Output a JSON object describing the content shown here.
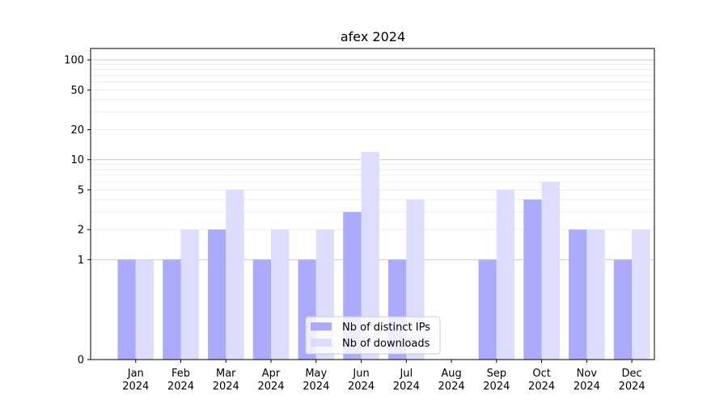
{
  "chart_data": {
    "type": "bar",
    "title": "afex 2024",
    "xlabel": "",
    "ylabel": "",
    "scale": "symlog",
    "ylim": [
      0,
      130
    ],
    "yticks": [
      0,
      1,
      2,
      5,
      10,
      20,
      50,
      100
    ],
    "categories": [
      [
        "Jan",
        "2024"
      ],
      [
        "Feb",
        "2024"
      ],
      [
        "Mar",
        "2024"
      ],
      [
        "Apr",
        "2024"
      ],
      [
        "May",
        "2024"
      ],
      [
        "Jun",
        "2024"
      ],
      [
        "Jul",
        "2024"
      ],
      [
        "Aug",
        "2024"
      ],
      [
        "Sep",
        "2024"
      ],
      [
        "Oct",
        "2024"
      ],
      [
        "Nov",
        "2024"
      ],
      [
        "Dec",
        "2024"
      ]
    ],
    "series": [
      {
        "name": "Nb of distinct IPs",
        "color": "#aaaaff",
        "values": [
          1,
          1,
          2,
          1,
          1,
          3,
          1,
          0,
          1,
          4,
          2,
          1
        ]
      },
      {
        "name": "Nb of downloads",
        "color": "#ddddff",
        "values": [
          1,
          2,
          5,
          2,
          2,
          12,
          4,
          0,
          5,
          6,
          2,
          2
        ]
      }
    ],
    "grid": true,
    "legend_position": "bottom-center"
  }
}
